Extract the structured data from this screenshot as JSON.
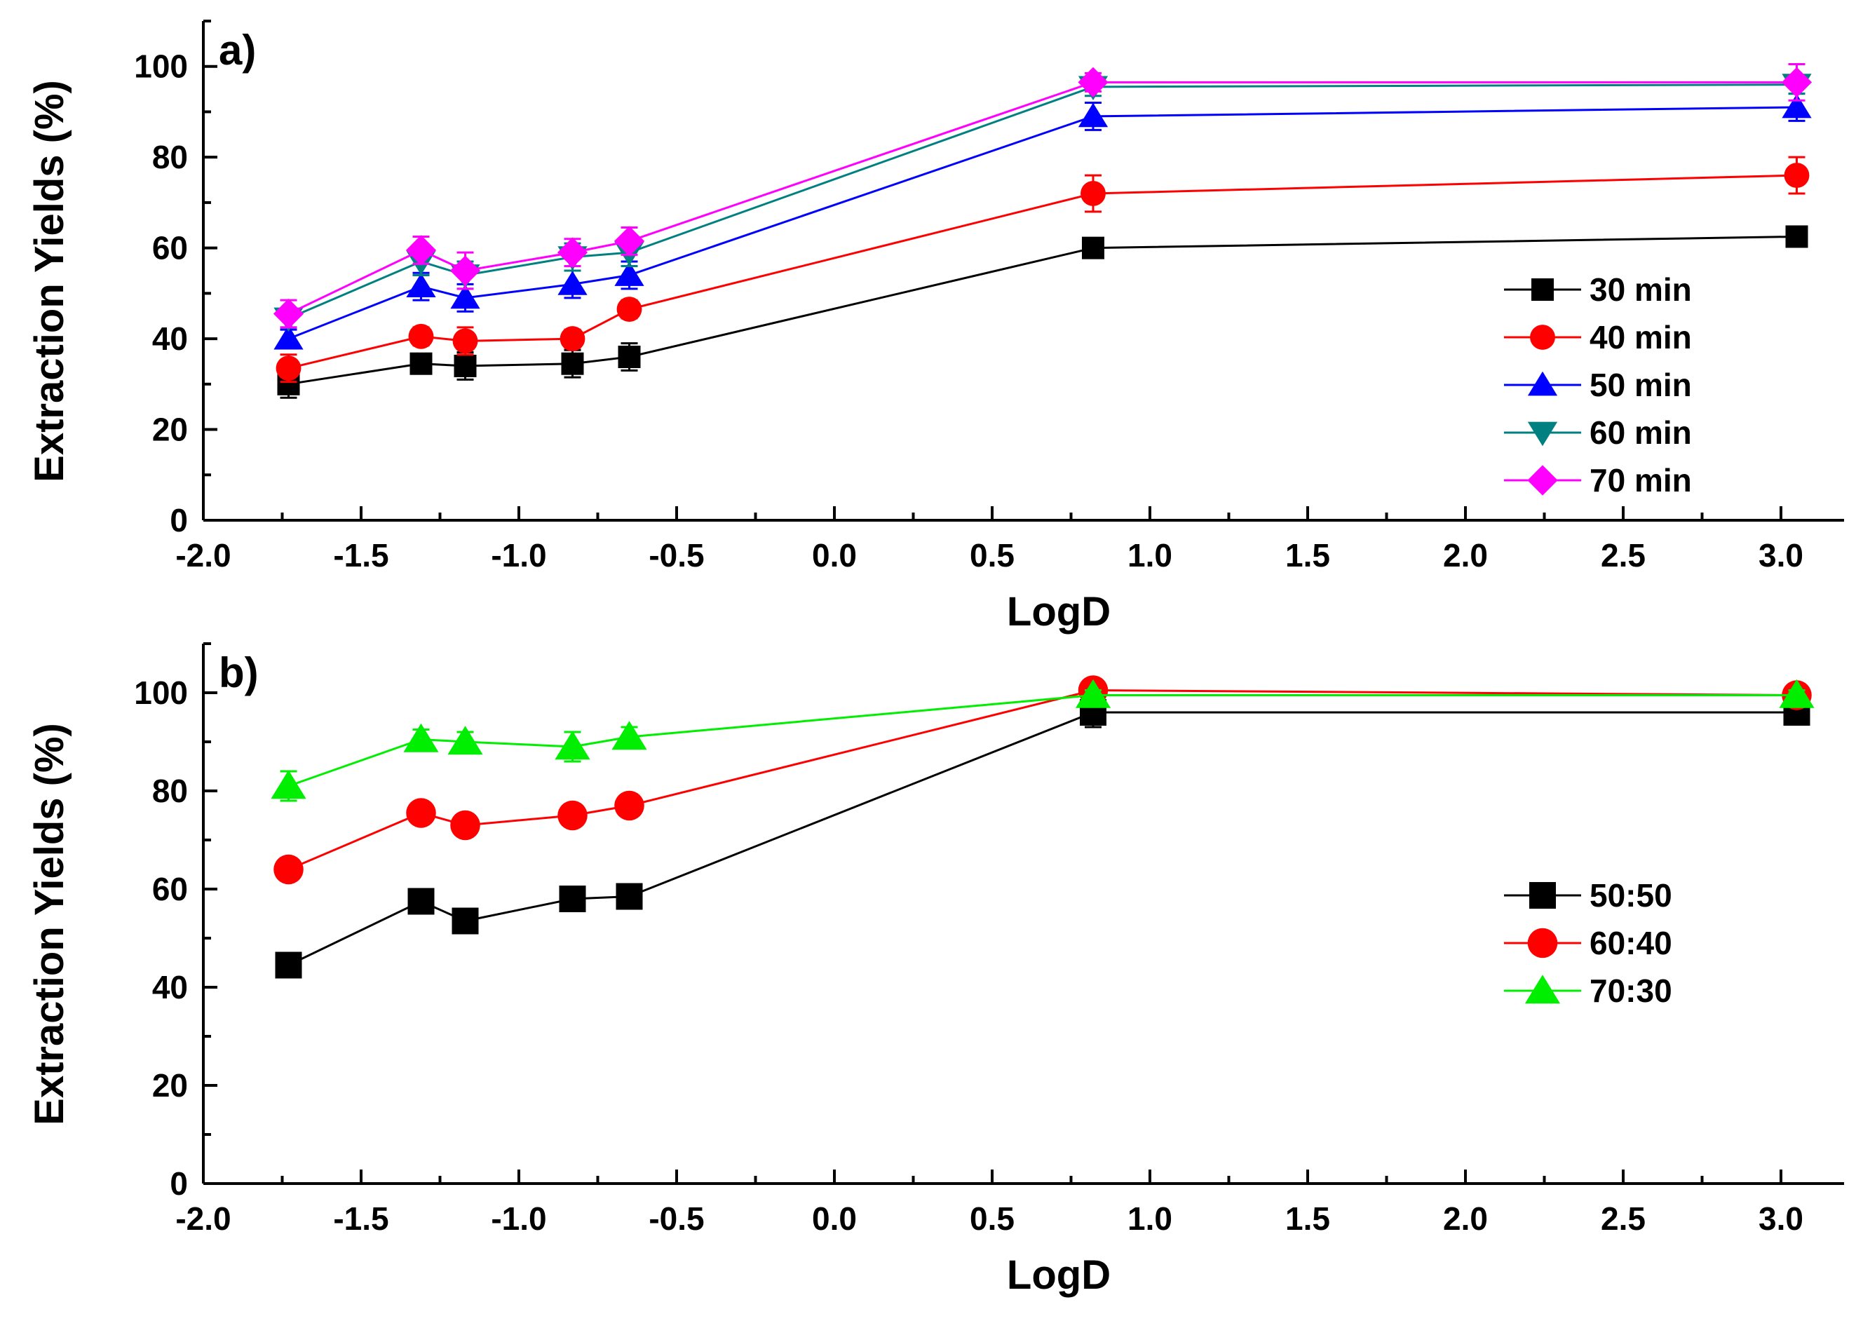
{
  "chart_data": [
    {
      "type": "line",
      "panel_label": "a)",
      "xlabel": "LogD",
      "ylabel": "Extraction Yields (%)",
      "xlim": [
        -2.0,
        3.2
      ],
      "ylim": [
        0,
        110
      ],
      "xticks": [
        -2.0,
        -1.5,
        -1.0,
        -0.5,
        0.0,
        0.5,
        1.0,
        1.5,
        2.0,
        2.5,
        3.0
      ],
      "xtick_labels": [
        "-2.0",
        "-1.5",
        "-1.0",
        "-0.5",
        "0.0",
        "0.5",
        "1.0",
        "1.5",
        "2.0",
        "2.5",
        "3.0"
      ],
      "yticks": [
        0,
        20,
        40,
        60,
        80,
        100
      ],
      "ytick_labels": [
        "0",
        "20",
        "40",
        "60",
        "80",
        "100"
      ],
      "grid": false,
      "legend_position": "right",
      "x": [
        -1.73,
        -1.31,
        -1.17,
        -0.83,
        -0.65,
        0.82,
        3.05
      ],
      "series": [
        {
          "name": "30 min",
          "color": "#000000",
          "marker": "square",
          "values": [
            30,
            34.5,
            34,
            34.5,
            36,
            60,
            62.5
          ],
          "errors": [
            3,
            2,
            3,
            3,
            3,
            1.5,
            2
          ]
        },
        {
          "name": "40 min",
          "color": "#ff0000",
          "marker": "circle",
          "values": [
            33.5,
            40.5,
            39.5,
            40,
            46.5,
            72,
            76
          ],
          "errors": [
            3,
            2,
            3,
            2,
            2,
            4,
            4
          ]
        },
        {
          "name": "50 min",
          "color": "#0000ff",
          "marker": "triangle-up",
          "values": [
            40,
            51.5,
            49,
            52,
            54,
            89,
            91
          ],
          "errors": [
            2,
            3,
            3,
            3,
            3,
            3,
            3
          ]
        },
        {
          "name": "60 min",
          "color": "#008080",
          "marker": "triangle-down",
          "values": [
            44.5,
            57,
            54,
            58,
            59,
            95.5,
            96
          ],
          "errors": [
            2,
            3,
            3,
            3,
            3,
            2,
            2
          ]
        },
        {
          "name": "70 min",
          "color": "#ff00ff",
          "marker": "diamond",
          "values": [
            45.5,
            59.5,
            55,
            59,
            61.5,
            96.5,
            96.5
          ],
          "errors": [
            3,
            3,
            4,
            3,
            3,
            2,
            4
          ]
        }
      ]
    },
    {
      "type": "line",
      "panel_label": "b)",
      "xlabel": "LogD",
      "ylabel": "Extraction Yields (%)",
      "xlim": [
        -2.0,
        3.2
      ],
      "ylim": [
        0,
        110
      ],
      "xticks": [
        -2.0,
        -1.5,
        -1.0,
        -0.5,
        0.0,
        0.5,
        1.0,
        1.5,
        2.0,
        2.5,
        3.0
      ],
      "xtick_labels": [
        "-2.0",
        "-1.5",
        "-1.0",
        "-0.5",
        "0.0",
        "0.5",
        "1.0",
        "1.5",
        "2.0",
        "2.5",
        "3.0"
      ],
      "yticks": [
        0,
        20,
        40,
        60,
        80,
        100
      ],
      "ytick_labels": [
        "0",
        "20",
        "40",
        "60",
        "80",
        "100"
      ],
      "grid": false,
      "legend_position": "right",
      "x": [
        -1.73,
        -1.31,
        -1.17,
        -0.83,
        -0.65,
        0.82,
        3.05
      ],
      "series": [
        {
          "name": "50:50",
          "color": "#000000",
          "marker": "square",
          "values": [
            44.5,
            57.5,
            53.5,
            58,
            58.5,
            96,
            96
          ],
          "errors": [
            1,
            1,
            1,
            1,
            1,
            3,
            2
          ]
        },
        {
          "name": "60:40",
          "color": "#ff0000",
          "marker": "circle",
          "values": [
            64,
            75.5,
            73,
            75,
            77,
            100.5,
            99.5
          ],
          "errors": [
            1,
            1,
            1,
            2,
            1,
            1,
            1
          ]
        },
        {
          "name": "70:30",
          "color": "#00ee00",
          "marker": "triangle-up",
          "values": [
            81,
            90.5,
            90,
            89,
            91,
            99.5,
            99.5
          ],
          "errors": [
            3,
            2,
            2,
            3,
            2,
            1,
            1
          ]
        }
      ]
    }
  ]
}
